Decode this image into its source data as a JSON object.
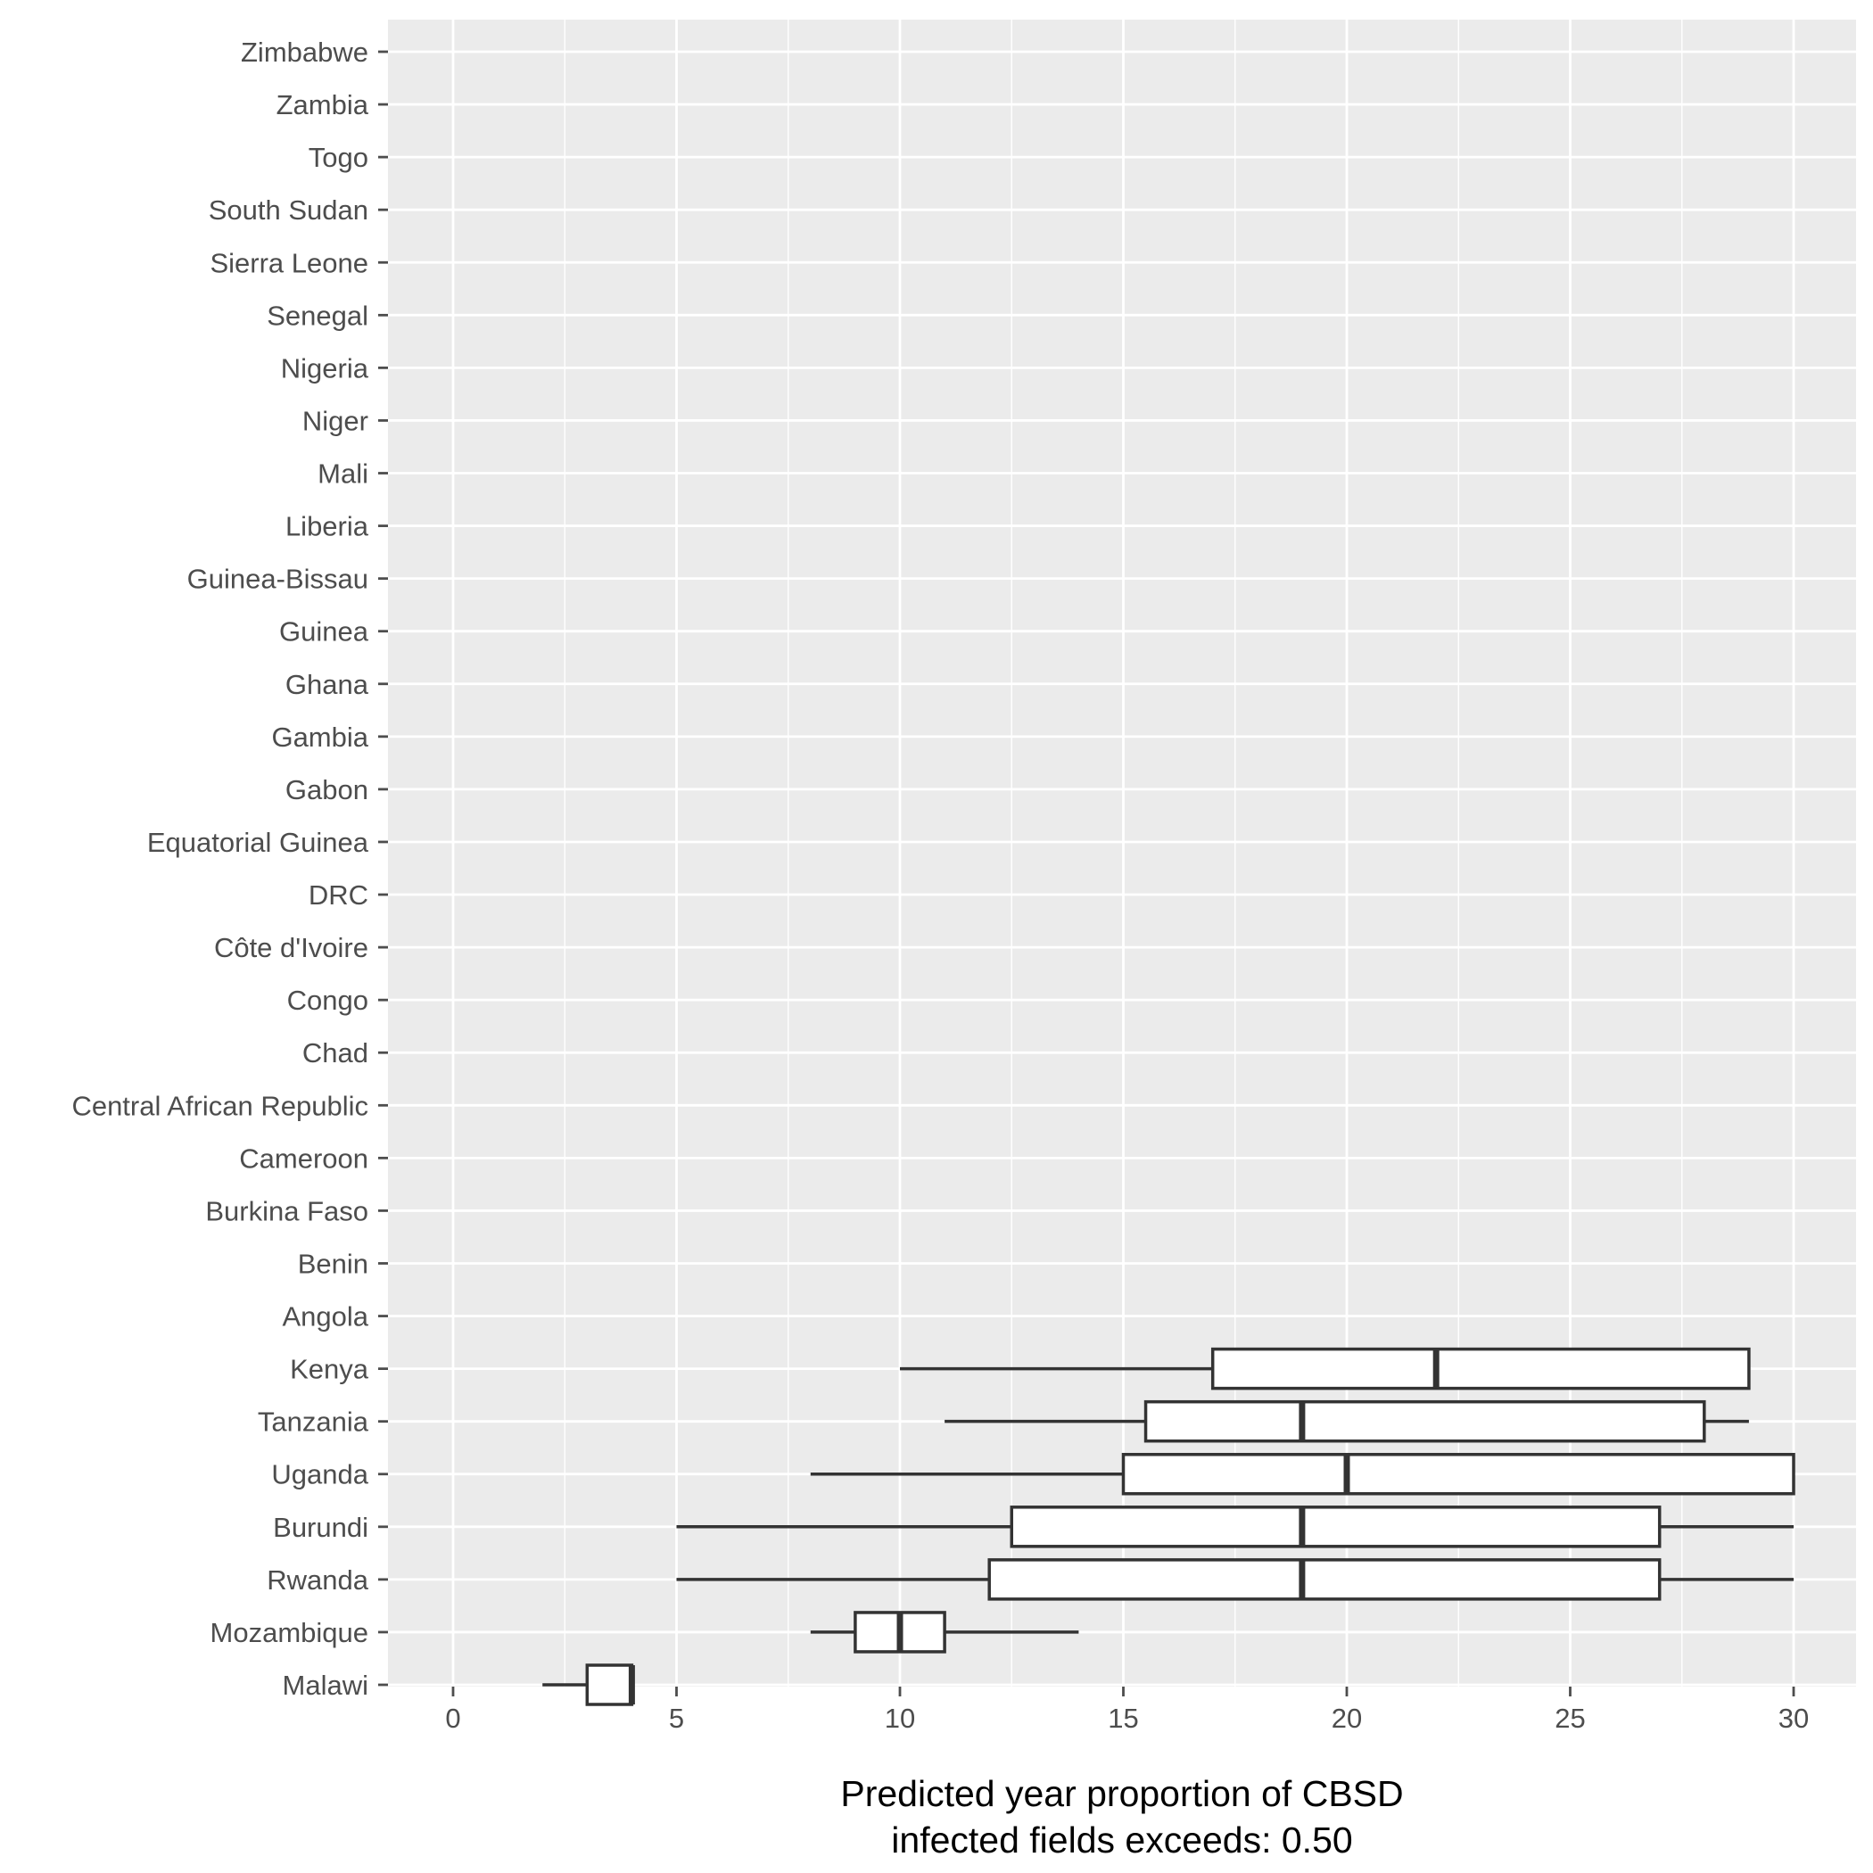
{
  "chart_data": {
    "type": "boxplot",
    "orientation": "horizontal",
    "xlabel": [
      "Predicted year proportion of CBSD",
      "infected fields exceeds: 0.50"
    ],
    "xlim": [
      -1.5,
      30.8
    ],
    "xticks": [
      0,
      5,
      10,
      15,
      20,
      25,
      30
    ],
    "grid": true,
    "categories": [
      "Zimbabwe",
      "Zambia",
      "Togo",
      "South Sudan",
      "Sierra Leone",
      "Senegal",
      "Nigeria",
      "Niger",
      "Mali",
      "Liberia",
      "Guinea-Bissau",
      "Guinea",
      "Ghana",
      "Gambia",
      "Gabon",
      "Equatorial Guinea",
      "DRC",
      "Côte d'Ivoire",
      "Congo",
      "Chad",
      "Central African Republic",
      "Cameroon",
      "Burkina Faso",
      "Benin",
      "Angola",
      "Kenya",
      "Tanzania",
      "Uganda",
      "Burundi",
      "Rwanda",
      "Mozambique",
      "Malawi"
    ],
    "boxes": [
      {
        "category": "Kenya",
        "min": 10,
        "q1": 17,
        "median": 22,
        "q3": 29,
        "max": 29
      },
      {
        "category": "Tanzania",
        "min": 11,
        "q1": 15.5,
        "median": 19,
        "q3": 28,
        "max": 29
      },
      {
        "category": "Uganda",
        "min": 8,
        "q1": 15,
        "median": 20,
        "q3": 30,
        "max": 30
      },
      {
        "category": "Burundi",
        "min": 5,
        "q1": 12.5,
        "median": 19,
        "q3": 27,
        "max": 30
      },
      {
        "category": "Rwanda",
        "min": 5,
        "q1": 12,
        "median": 19,
        "q3": 27,
        "max": 30
      },
      {
        "category": "Mozambique",
        "min": 8,
        "q1": 9,
        "median": 10,
        "q3": 11,
        "max": 14
      },
      {
        "category": "Malawi",
        "min": 2,
        "q1": 3,
        "median": 4,
        "q3": 4,
        "max": 4
      }
    ],
    "colors": {
      "panel": "#ebebeb",
      "grid": "#ffffff",
      "box_fill": "#ffffff",
      "box_line": "#333333",
      "tick_text": "#4d4d4d"
    }
  }
}
